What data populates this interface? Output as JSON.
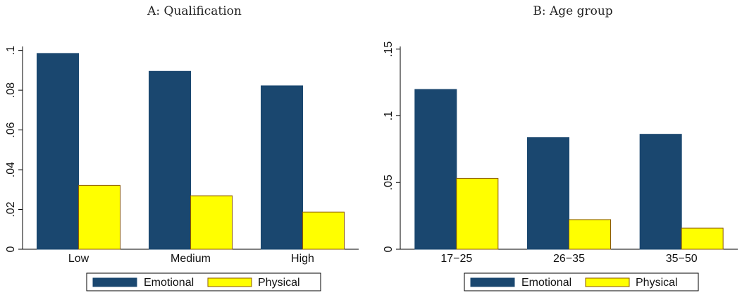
{
  "colors": {
    "emotional": "#1a476f",
    "physical": "#ffff00",
    "physical_stroke": "#8b5a00",
    "axis": "#000000"
  },
  "legend": {
    "emotional": "Emotional",
    "physical": "Physical"
  },
  "chart_data": [
    {
      "type": "bar",
      "title": "A: Qualification",
      "categories": [
        "Low",
        "Medium",
        "High"
      ],
      "series": [
        {
          "name": "Emotional",
          "values": [
            0.0985,
            0.0895,
            0.0822
          ]
        },
        {
          "name": "Physical",
          "values": [
            0.0321,
            0.0269,
            0.0187
          ]
        }
      ],
      "ylim": [
        0,
        0.102
      ],
      "yticks": [
        0,
        0.02,
        0.04,
        0.06,
        0.08,
        0.1
      ],
      "ytick_labels": [
        "0",
        ".02",
        ".04",
        ".06",
        ".08",
        ".1"
      ],
      "legend_position": "bottom"
    },
    {
      "type": "bar",
      "title": "B: Age group",
      "categories": [
        "17−25",
        "26−35",
        "35−50"
      ],
      "series": [
        {
          "name": "Emotional",
          "values": [
            0.1198,
            0.0837,
            0.0862
          ]
        },
        {
          "name": "Physical",
          "values": [
            0.0531,
            0.0222,
            0.0158
          ]
        }
      ],
      "ylim": [
        0,
        0.152
      ],
      "yticks": [
        0,
        0.05,
        0.1,
        0.15
      ],
      "ytick_labels": [
        "0",
        ".05",
        ".1",
        ".15"
      ],
      "legend_position": "bottom"
    }
  ]
}
